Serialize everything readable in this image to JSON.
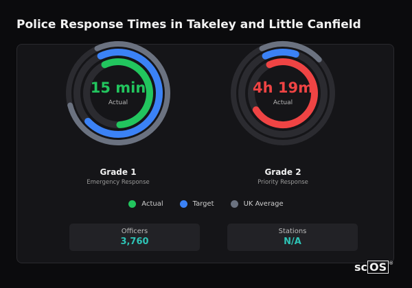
{
  "title": "Police Response Times in Takeley and Little Canfield",
  "colors": {
    "actual_1": "#22c55e",
    "actual_2": "#ef4444",
    "target": "#3b82f6",
    "average": "#6b7280",
    "track": "#2b2b30",
    "stat_value": "#2ec4b6"
  },
  "gauges": [
    {
      "value": "15 min",
      "value_label": "Actual",
      "grade": "Grade 1",
      "subtitle": "Emergency Response",
      "ring_fractions": {
        "average": 0.78,
        "target": 0.7,
        "actual": 0.56
      }
    },
    {
      "value": "4h 19m",
      "value_label": "Actual",
      "grade": "Grade 2",
      "subtitle": "Priority Response",
      "ring_fractions": {
        "average": 0.2,
        "target": 0.12,
        "actual": 0.73
      }
    }
  ],
  "legend": [
    {
      "label": "Actual",
      "color": "#22c55e"
    },
    {
      "label": "Target",
      "color": "#3b82f6"
    },
    {
      "label": "UK Average",
      "color": "#6b7280"
    }
  ],
  "stats": [
    {
      "label": "Officers",
      "value": "3,760"
    },
    {
      "label": "Stations",
      "value": "N/A"
    }
  ],
  "brand": {
    "prefix": "sc",
    "boxed": "OS",
    "mark": "®"
  }
}
